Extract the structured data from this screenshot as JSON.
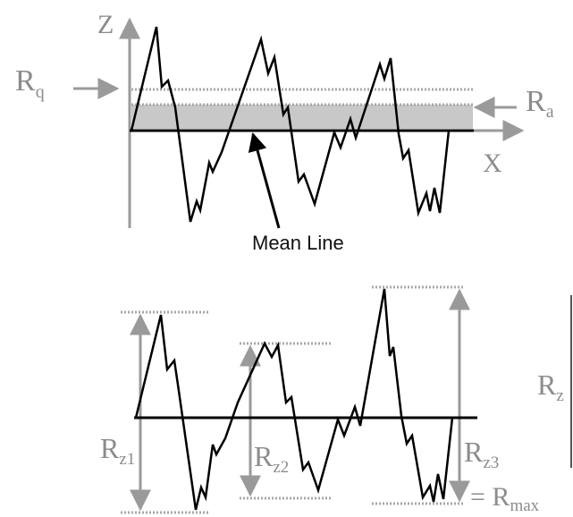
{
  "top_diagram": {
    "axis_z": "Z",
    "axis_x": "X",
    "rq": {
      "main": "R",
      "sub": "q"
    },
    "ra": {
      "main": "R",
      "sub": "a"
    },
    "mean_line": "Mean Line"
  },
  "bottom_diagram": {
    "rz1": {
      "main": "R",
      "sub": "z1"
    },
    "rz2": {
      "main": "R",
      "sub": "z2"
    },
    "rz3": {
      "main": "R",
      "sub": "z3"
    },
    "rz": {
      "main": "R",
      "sub": "z"
    },
    "rmax": {
      "prefix": "= ",
      "main": "R",
      "sub": "max"
    }
  },
  "colors": {
    "profile": "#000000",
    "axes": "#9a9a9a",
    "ra_band": "#c8c8c8",
    "guide_dotted": "#a8a8a8",
    "label_gray": "#8c8c8c"
  }
}
